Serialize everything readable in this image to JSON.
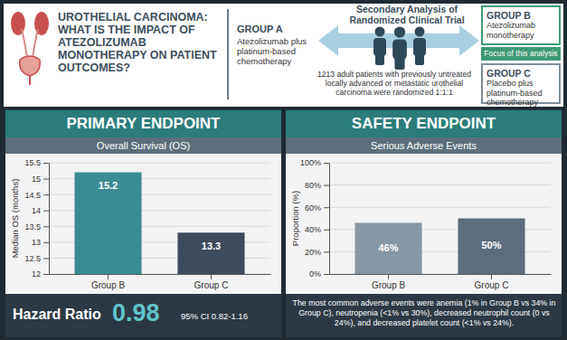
{
  "header": {
    "title": "UROTHELIAL CARCINOMA: WHAT IS THE IMPACT OF ATEZOLIZUMAB MONOTHERAPY ON PATIENT OUTCOMES?",
    "study": "Secondary Analysis of Randomized Clinical Trial",
    "population": "1213 adult patients with previously untreated locally advanced or metastatic urothelial carcinoma were randomized 1:1:1",
    "focus": "Focus of this analysis",
    "groups": [
      {
        "label": "GROUP A",
        "text": "Atezolizumab plus platinum-based chemotherapy"
      },
      {
        "label": "GROUP B",
        "text": "Atezolizumab monotherapy"
      },
      {
        "label": "GROUP C",
        "text": "Placebo plus platinum-based chemotherapy"
      }
    ]
  },
  "panels": [
    {
      "heading": "PRIMARY ENDPOINT"
    },
    {
      "heading": "SAFETY ENDPOINT"
    }
  ],
  "hazard_ratio": {
    "label": "Hazard Ratio",
    "value": "0.98",
    "ci": "95% CI 0.82-1.16"
  },
  "safety_note": "The most common adverse events were anemia (1% in Group B vs 34% in Group C), neutropenia (<1% vs 30%), decreased neutrophil count (0 vs 24%), and decreased platelet count (<1% vs 24%).",
  "chart_data": [
    {
      "type": "bar",
      "title": "Overall Survival (OS)",
      "y_label": "Median OS (months)",
      "categories": [
        "Group B",
        "Group C"
      ],
      "values": [
        15.2,
        13.3
      ],
      "colors": [
        "#3a8c93",
        "#3e4b5d"
      ],
      "ylim": [
        12,
        15.5
      ],
      "yticks": [
        12,
        12.5,
        13,
        13.5,
        14,
        14.5,
        15,
        15.5
      ],
      "grid": true,
      "data_labels": true
    },
    {
      "type": "bar",
      "title": "Serious Adverse Events",
      "y_label": "Proportion (%)",
      "categories": [
        "Group B",
        "Group C"
      ],
      "values": [
        46,
        50
      ],
      "value_labels": [
        "46%",
        "50%"
      ],
      "colors": [
        "#8797a4",
        "#5d6d7d"
      ],
      "ylim": [
        0,
        100
      ],
      "yticks": [
        {
          "value": 0,
          "label": "0%"
        },
        {
          "value": 20,
          "label": "20%"
        },
        {
          "value": 40,
          "label": "40%"
        },
        {
          "value": 60,
          "label": "60%"
        },
        {
          "value": 80,
          "label": "80%"
        },
        {
          "value": 100,
          "label": "100%"
        }
      ],
      "grid": true,
      "data_labels": true
    }
  ]
}
